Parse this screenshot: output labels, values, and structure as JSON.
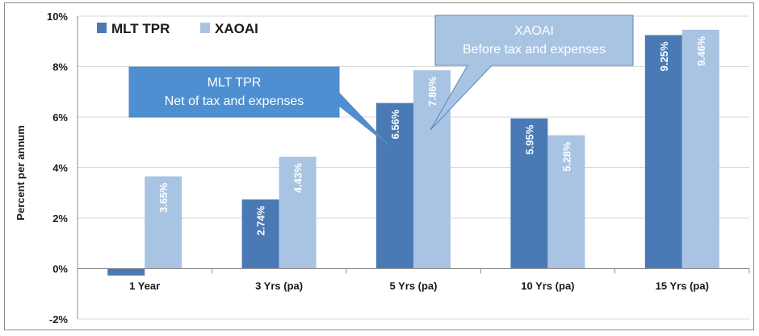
{
  "chart_data": {
    "type": "bar",
    "ylabel": "Percent per annum",
    "ylim": [
      -2,
      10
    ],
    "yticks": [
      -2,
      0,
      2,
      4,
      6,
      8,
      10
    ],
    "ytick_labels": [
      "-2%",
      "0%",
      "2%",
      "4%",
      "6%",
      "8%",
      "10%"
    ],
    "grid": true,
    "legend_position": "top-left",
    "categories": [
      "1 Year",
      "3 Yrs (pa)",
      "5 Yrs (pa)",
      "10 Yrs (pa)",
      "15 Yrs (pa)"
    ],
    "series": [
      {
        "name": "MLT TPR",
        "color": "#4a7ab5",
        "values": [
          -0.28,
          2.74,
          6.56,
          5.95,
          9.25
        ],
        "labels": [
          "",
          "2.74%",
          "6.56%",
          "5.95%",
          "9.25%"
        ]
      },
      {
        "name": "XAOAI",
        "color": "#a9c4e3",
        "values": [
          3.65,
          4.43,
          7.86,
          5.28,
          9.46
        ],
        "labels": [
          "3.65%",
          "4.43%",
          "7.86%",
          "5.28%",
          "9.46%"
        ]
      }
    ],
    "annotations": [
      {
        "series": "MLT TPR",
        "lines": [
          "MLT TPR",
          "Net of tax and expenses"
        ],
        "fill": "#4d8fd0"
      },
      {
        "series": "XAOAI",
        "lines": [
          "XAOAI",
          "Before tax and expenses"
        ],
        "fill": "#a9c4e3"
      }
    ]
  }
}
